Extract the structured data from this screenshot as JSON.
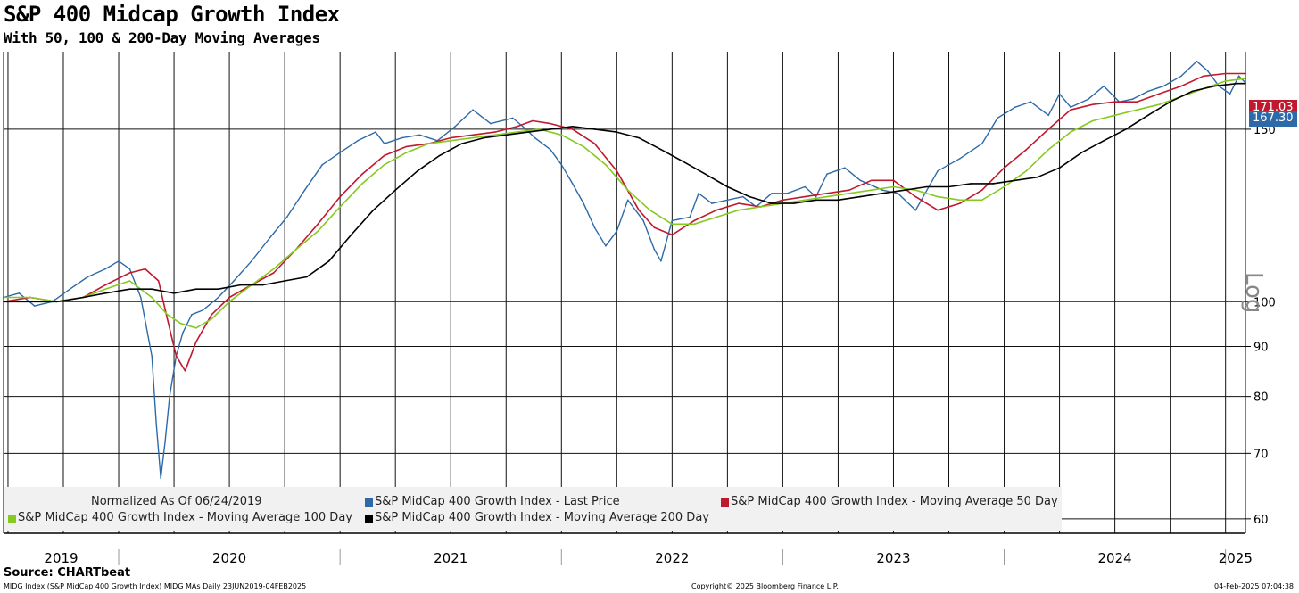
{
  "header": {
    "title": "S&P 400 Midcap Growth Index",
    "subtitle": "With 50, 100 & 200-Day Moving Averages"
  },
  "legend": {
    "note": "Normalized As Of 06/24/2019",
    "items": [
      {
        "label": "S&P MidCap 400 Growth Index - Last Price",
        "color": "#2e6aa8"
      },
      {
        "label": "S&P MidCap 400 Growth Index - Moving Average 50 Day",
        "color": "#c0192e"
      },
      {
        "label": "S&P MidCap 400 Growth Index - Moving Average 100 Day",
        "color": "#86c91f"
      },
      {
        "label": "S&P MidCap 400 Growth Index - Moving Average 200 Day",
        "color": "#000000"
      }
    ]
  },
  "value_tags": {
    "top": "171.03",
    "bottom": "167.30"
  },
  "axis_scale_label": "Log",
  "footer": {
    "source": "Source: CHARTbeat",
    "left": "MIDG Index (S&P MidCap 400 Growth Index) MIDG MAs  Daily 23JUN2019-04FEB2025",
    "center": "Copyright© 2025 Bloomberg Finance L.P.",
    "right": "04-Feb-2025 07:04:38"
  },
  "chart_data": {
    "type": "line",
    "title": "S&P 400 Midcap Growth Index",
    "subtitle": "With 50, 100 & 200-Day Moving Averages",
    "y_scale": "log",
    "ylim": [
      58,
      180
    ],
    "yticks": [
      60,
      70,
      80,
      90,
      100,
      150
    ],
    "xlim": [
      2019.48,
      2025.09
    ],
    "x_labels": [
      "2019",
      "2020",
      "2021",
      "2022",
      "2023",
      "2024",
      "2025"
    ],
    "grid": true,
    "legend_position": "bottom-left",
    "series": [
      {
        "name": "S&P MidCap 400 Growth Index - Last Price",
        "color": "#2e6aa8",
        "x": [
          2019.48,
          2019.55,
          2019.62,
          2019.7,
          2019.78,
          2019.86,
          2019.94,
          2020.0,
          2020.05,
          2020.1,
          2020.15,
          2020.17,
          2020.19,
          2020.21,
          2020.23,
          2020.26,
          2020.29,
          2020.33,
          2020.38,
          2020.45,
          2020.52,
          2020.6,
          2020.68,
          2020.76,
          2020.84,
          2020.92,
          2021.0,
          2021.08,
          2021.16,
          2021.2,
          2021.28,
          2021.36,
          2021.44,
          2021.52,
          2021.6,
          2021.68,
          2021.78,
          2021.84,
          2021.88,
          2021.95,
          2022.0,
          2022.05,
          2022.1,
          2022.15,
          2022.2,
          2022.25,
          2022.3,
          2022.37,
          2022.42,
          2022.45,
          2022.5,
          2022.58,
          2022.62,
          2022.68,
          2022.75,
          2022.82,
          2022.88,
          2022.95,
          2023.02,
          2023.1,
          2023.15,
          2023.2,
          2023.28,
          2023.35,
          2023.45,
          2023.52,
          2023.6,
          2023.7,
          2023.8,
          2023.9,
          2023.97,
          2024.05,
          2024.12,
          2024.2,
          2024.25,
          2024.3,
          2024.38,
          2024.45,
          2024.52,
          2024.58,
          2024.65,
          2024.72,
          2024.8,
          2024.87,
          2024.92,
          2024.97,
          2025.02,
          2025.06,
          2025.09
        ],
        "values": [
          101,
          102,
          99,
          100,
          103,
          106,
          108,
          110,
          108,
          101,
          88,
          75,
          66,
          72,
          80,
          88,
          93,
          97,
          98,
          101,
          105,
          110,
          116,
          122,
          130,
          138,
          142,
          146,
          149,
          145,
          147,
          148,
          146,
          151,
          157,
          152,
          154,
          150,
          147,
          143,
          138,
          132,
          126,
          119,
          114,
          118,
          127,
          121,
          113,
          110,
          121,
          122,
          129,
          126,
          127,
          128,
          125,
          129,
          129,
          131,
          128,
          135,
          137,
          133,
          130,
          129,
          124,
          136,
          140,
          145,
          154,
          158,
          160,
          155,
          163,
          158,
          161,
          166,
          160,
          161,
          164,
          166,
          170,
          176,
          172,
          166,
          163,
          170,
          167.3
        ]
      },
      {
        "name": "S&P MidCap 400 Growth Index - Moving Average 50 Day",
        "color": "#c0192e",
        "x": [
          2019.48,
          2019.6,
          2019.72,
          2019.84,
          2019.94,
          2020.05,
          2020.12,
          2020.18,
          2020.22,
          2020.26,
          2020.3,
          2020.35,
          2020.42,
          2020.5,
          2020.6,
          2020.7,
          2020.8,
          2020.9,
          2021.0,
          2021.1,
          2021.2,
          2021.3,
          2021.4,
          2021.5,
          2021.6,
          2021.7,
          2021.8,
          2021.87,
          2021.95,
          2022.05,
          2022.15,
          2022.25,
          2022.35,
          2022.42,
          2022.5,
          2022.6,
          2022.7,
          2022.8,
          2022.9,
          2023.0,
          2023.1,
          2023.2,
          2023.3,
          2023.4,
          2023.5,
          2023.6,
          2023.7,
          2023.8,
          2023.9,
          2024.0,
          2024.1,
          2024.2,
          2024.3,
          2024.4,
          2024.5,
          2024.6,
          2024.7,
          2024.8,
          2024.9,
          2025.0,
          2025.09
        ],
        "values": [
          100,
          101,
          100,
          101,
          104,
          107,
          108,
          105,
          96,
          88,
          85,
          91,
          97,
          101,
          104,
          107,
          113,
          120,
          128,
          135,
          141,
          144,
          145,
          147,
          148,
          149,
          151,
          153,
          152,
          150,
          145,
          136,
          124,
          119,
          117,
          121,
          124,
          126,
          125,
          127,
          128,
          129,
          130,
          133,
          133,
          128,
          124,
          126,
          130,
          137,
          143,
          150,
          157,
          159,
          160,
          160,
          163,
          166,
          170,
          171,
          171
        ]
      },
      {
        "name": "S&P MidCap 400 Growth Index - Moving Average 100 Day",
        "color": "#86c91f",
        "x": [
          2019.48,
          2019.6,
          2019.72,
          2019.84,
          2019.94,
          2020.05,
          2020.15,
          2020.22,
          2020.28,
          2020.35,
          2020.42,
          2020.5,
          2020.6,
          2020.7,
          2020.8,
          2020.9,
          2021.0,
          2021.1,
          2021.2,
          2021.3,
          2021.4,
          2021.5,
          2021.6,
          2021.7,
          2021.8,
          2021.9,
          2022.0,
          2022.1,
          2022.2,
          2022.3,
          2022.4,
          2022.5,
          2022.6,
          2022.7,
          2022.8,
          2022.9,
          2023.0,
          2023.1,
          2023.2,
          2023.3,
          2023.4,
          2023.5,
          2023.6,
          2023.7,
          2023.8,
          2023.9,
          2024.0,
          2024.1,
          2024.2,
          2024.3,
          2024.4,
          2024.5,
          2024.6,
          2024.7,
          2024.8,
          2024.9,
          2025.0,
          2025.09
        ],
        "values": [
          101,
          101,
          100,
          101,
          103,
          105,
          101,
          97,
          95,
          94,
          96,
          100,
          104,
          108,
          113,
          118,
          125,
          132,
          138,
          142,
          145,
          146,
          147,
          148,
          149,
          150,
          148,
          144,
          138,
          130,
          124,
          120,
          120,
          122,
          124,
          125,
          126,
          127,
          128,
          129,
          130,
          131,
          130,
          128,
          127,
          127,
          131,
          136,
          143,
          149,
          153,
          155,
          157,
          159,
          162,
          165,
          168,
          169
        ]
      },
      {
        "name": "S&P MidCap 400 Growth Index - Moving Average 200 Day",
        "color": "#000000",
        "x": [
          2019.48,
          2019.6,
          2019.72,
          2019.84,
          2019.94,
          2020.05,
          2020.15,
          2020.25,
          2020.35,
          2020.45,
          2020.55,
          2020.65,
          2020.75,
          2020.85,
          2020.95,
          2021.05,
          2021.15,
          2021.25,
          2021.35,
          2021.45,
          2021.55,
          2021.65,
          2021.75,
          2021.85,
          2021.95,
          2022.05,
          2022.15,
          2022.25,
          2022.35,
          2022.45,
          2022.55,
          2022.65,
          2022.75,
          2022.85,
          2022.95,
          2023.05,
          2023.15,
          2023.25,
          2023.35,
          2023.45,
          2023.55,
          2023.65,
          2023.75,
          2023.85,
          2023.95,
          2024.05,
          2024.15,
          2024.25,
          2024.35,
          2024.45,
          2024.55,
          2024.65,
          2024.75,
          2024.85,
          2024.95,
          2025.05,
          2025.09
        ],
        "values": [
          100,
          100,
          100,
          101,
          102,
          103,
          103,
          102,
          103,
          103,
          104,
          104,
          105,
          106,
          110,
          117,
          124,
          130,
          136,
          141,
          145,
          147,
          148,
          149,
          150,
          151,
          150,
          149,
          147,
          143,
          139,
          135,
          131,
          128,
          126,
          126,
          127,
          127,
          128,
          129,
          130,
          131,
          131,
          132,
          132,
          133,
          134,
          137,
          142,
          146,
          150,
          155,
          160,
          164,
          166,
          167,
          167
        ]
      }
    ]
  }
}
